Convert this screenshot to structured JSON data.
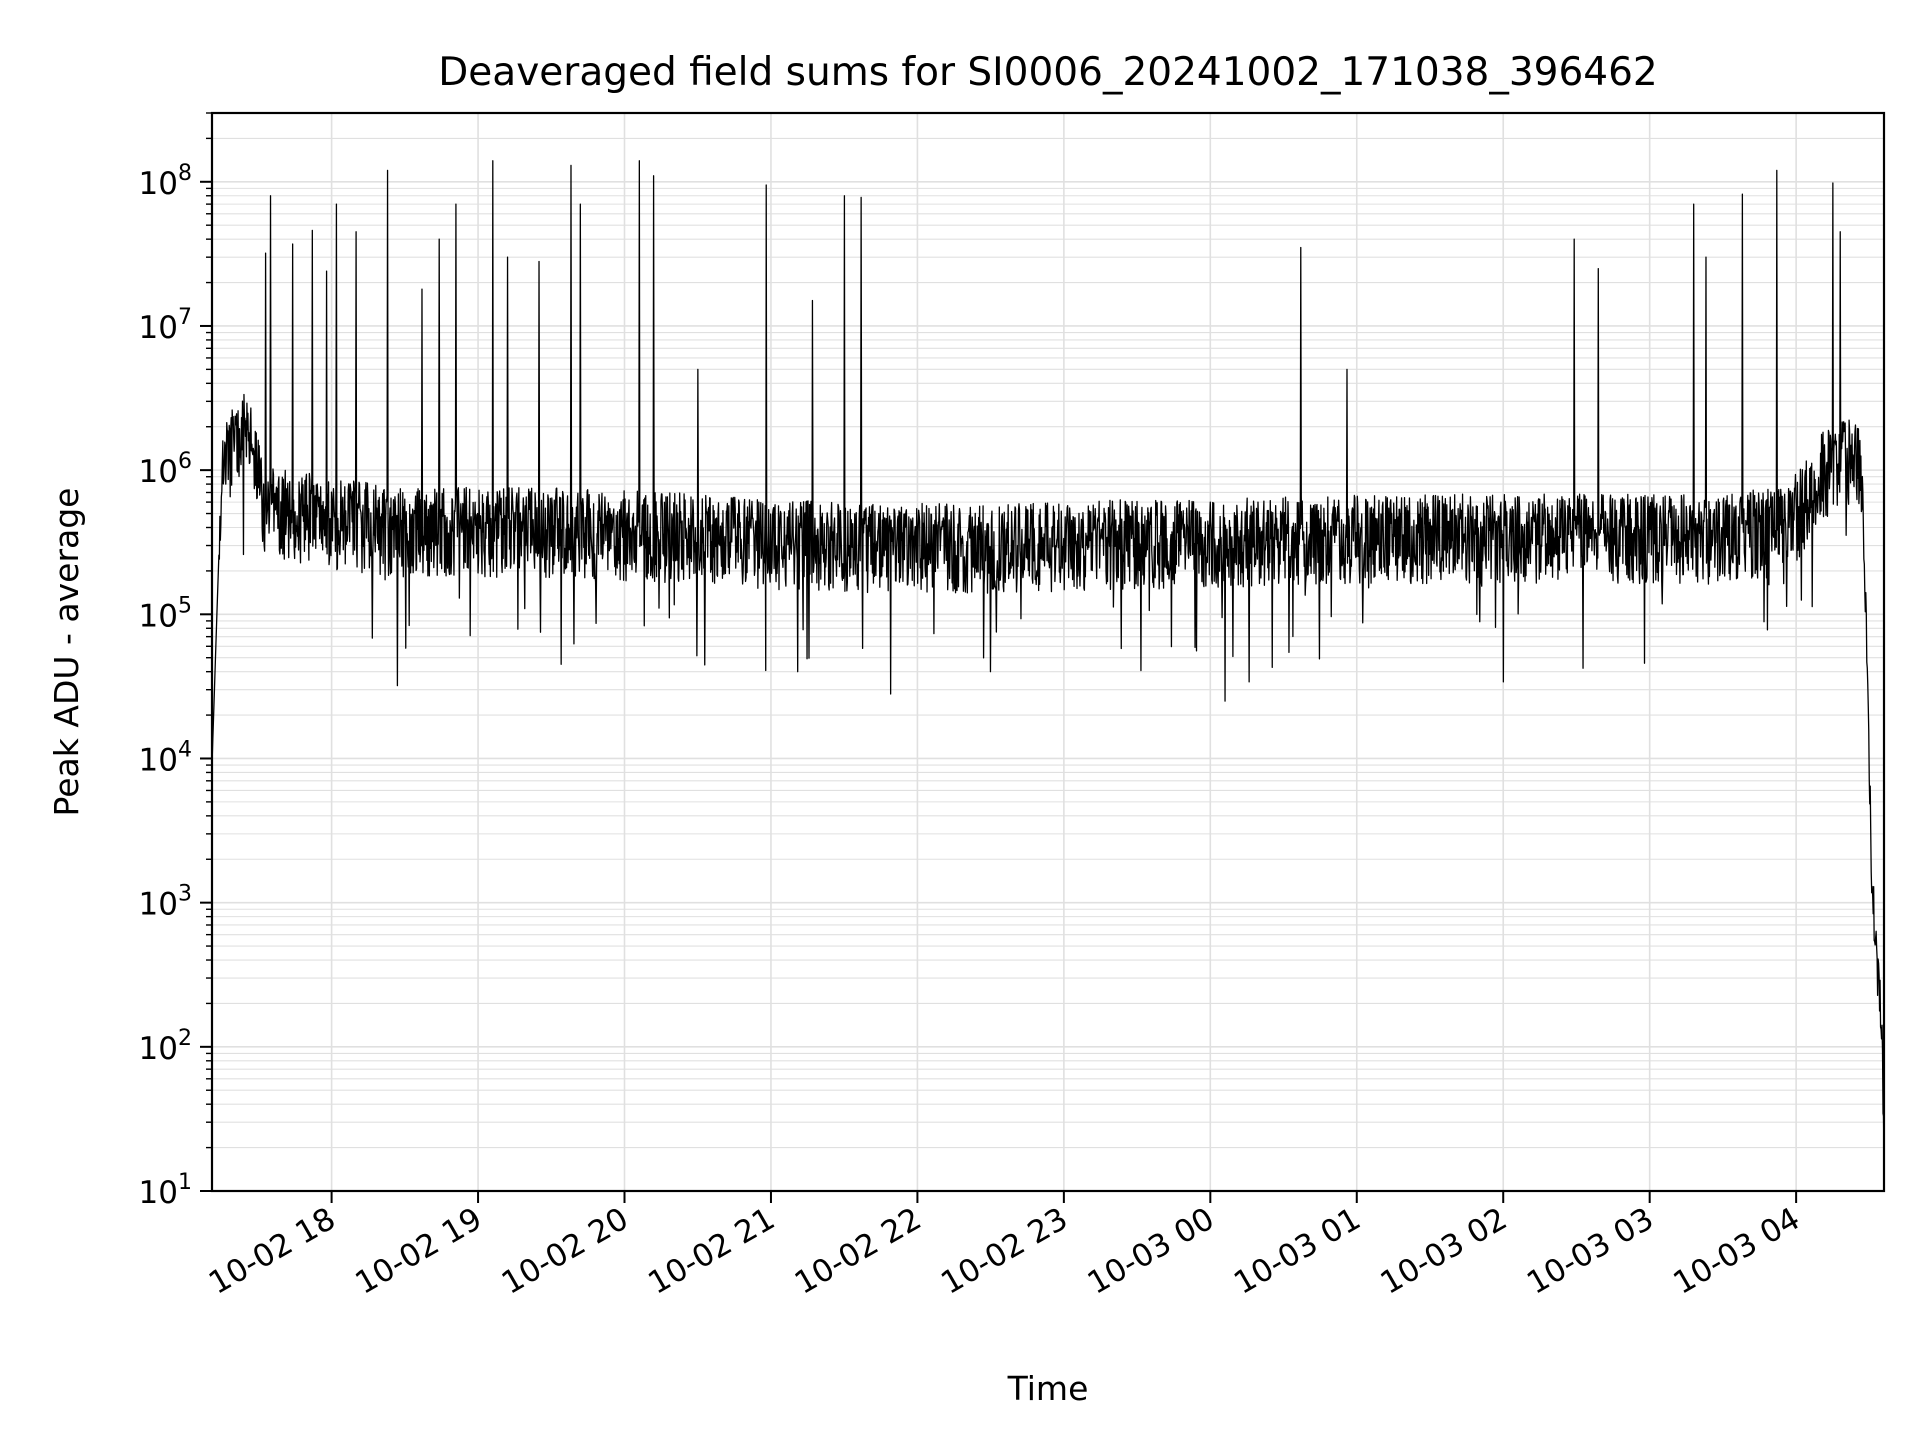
{
  "chart_data": {
    "type": "line",
    "title": "Deaveraged field sums for SI0006_20241002_171038_396462",
    "xlabel": "Time",
    "ylabel": "Peak ADU - average",
    "yscale": "log",
    "ylim": [
      10,
      300000000
    ],
    "xlim": [
      "2024-10-02 17:11",
      "2024-10-03 04:36"
    ],
    "grid": true,
    "line_color": "#000000",
    "grid_color": "#e0e0e0",
    "x_ticks": [
      "2024-10-02 18:00",
      "2024-10-02 19:00",
      "2024-10-02 20:00",
      "2024-10-02 21:00",
      "2024-10-02 22:00",
      "2024-10-02 23:00",
      "2024-10-03 00:00",
      "2024-10-03 01:00",
      "2024-10-03 02:00",
      "2024-10-03 03:00",
      "2024-10-03 04:00"
    ],
    "x_tick_labels": [
      "10-02 18",
      "10-02 19",
      "10-02 20",
      "10-02 21",
      "10-02 22",
      "10-02 23",
      "10-03 00",
      "10-03 01",
      "10-03 02",
      "10-03 03",
      "10-03 04"
    ],
    "y_ticks": [
      {
        "value": 10,
        "base": "10",
        "exp": "1"
      },
      {
        "value": 100,
        "base": "10",
        "exp": "2"
      },
      {
        "value": 1000,
        "base": "10",
        "exp": "3"
      },
      {
        "value": 10000,
        "base": "10",
        "exp": "4"
      },
      {
        "value": 100000,
        "base": "10",
        "exp": "5"
      },
      {
        "value": 1000000,
        "base": "10",
        "exp": "6"
      },
      {
        "value": 10000000,
        "base": "10",
        "exp": "7"
      },
      {
        "value": 100000000,
        "base": "10",
        "exp": "8"
      }
    ],
    "series": [
      {
        "x": [
          "2024-10-02 17:11",
          "2024-10-02 17:13",
          "2024-10-02 17:15",
          "2024-10-02 17:19",
          "2024-10-02 17:25",
          "2024-10-02 17:32",
          "2024-10-02 17:38",
          "2024-10-02 17:44",
          "2024-10-02 17:52",
          "2024-10-02 18:00",
          "2024-10-02 18:10",
          "2024-10-02 18:20",
          "2024-10-02 18:30",
          "2024-10-02 18:45",
          "2024-10-02 19:00",
          "2024-10-02 19:30",
          "2024-10-02 20:00",
          "2024-10-02 20:30",
          "2024-10-02 21:00",
          "2024-10-02 21:30",
          "2024-10-02 22:00",
          "2024-10-02 22:30",
          "2024-10-02 23:00",
          "2024-10-02 23:30",
          "2024-10-03 00:00",
          "2024-10-03 00:30",
          "2024-10-03 01:00",
          "2024-10-03 01:30",
          "2024-10-03 02:00",
          "2024-10-03 02:30",
          "2024-10-03 03:00",
          "2024-10-03 03:30",
          "2024-10-03 03:50",
          "2024-10-03 04:00",
          "2024-10-03 04:10",
          "2024-10-03 04:20",
          "2024-10-03 04:27",
          "2024-10-03 04:29",
          "2024-10-03 04:31",
          "2024-10-03 04:33",
          "2024-10-03 04:35",
          "2024-10-03 04:36"
        ],
        "y": [
          9000,
          100000,
          1000000,
          1500000,
          2000000,
          600000,
          550000,
          500000,
          500000,
          450000,
          450000,
          420000,
          400000,
          400000,
          400000,
          400000,
          380000,
          360000,
          330000,
          320000,
          310000,
          310000,
          320000,
          330000,
          330000,
          350000,
          360000,
          360000,
          360000,
          360000,
          360000,
          360000,
          400000,
          500000,
          1000000,
          1200000,
          1100000,
          50000,
          1500,
          400,
          150,
          20
        ],
        "envelope": {
          "baseline_upper_factor": 1.9,
          "baseline_lower_factor": 0.45,
          "dip_min": 25000
        }
      }
    ],
    "spikes": [
      {
        "x": "2024-10-02 17:33",
        "y": 32000000
      },
      {
        "x": "2024-10-02 17:35",
        "y": 80000000
      },
      {
        "x": "2024-10-02 17:44",
        "y": 37000000
      },
      {
        "x": "2024-10-02 17:52",
        "y": 46000000
      },
      {
        "x": "2024-10-02 17:58",
        "y": 24000000
      },
      {
        "x": "2024-10-02 18:02",
        "y": 70000000
      },
      {
        "x": "2024-10-02 18:10",
        "y": 45000000
      },
      {
        "x": "2024-10-02 18:23",
        "y": 120000000
      },
      {
        "x": "2024-10-02 18:37",
        "y": 18000000
      },
      {
        "x": "2024-10-02 18:44",
        "y": 40000000
      },
      {
        "x": "2024-10-02 18:51",
        "y": 70000000
      },
      {
        "x": "2024-10-02 19:06",
        "y": 140000000
      },
      {
        "x": "2024-10-02 19:12",
        "y": 30000000
      },
      {
        "x": "2024-10-02 19:25",
        "y": 28000000
      },
      {
        "x": "2024-10-02 19:38",
        "y": 130000000
      },
      {
        "x": "2024-10-02 19:42",
        "y": 70000000
      },
      {
        "x": "2024-10-02 20:06",
        "y": 140000000
      },
      {
        "x": "2024-10-02 20:12",
        "y": 110000000
      },
      {
        "x": "2024-10-02 20:30",
        "y": 5000000
      },
      {
        "x": "2024-10-02 20:58",
        "y": 95000000
      },
      {
        "x": "2024-10-02 21:17",
        "y": 15000000
      },
      {
        "x": "2024-10-02 21:30",
        "y": 80000000
      },
      {
        "x": "2024-10-02 21:37",
        "y": 78000000
      },
      {
        "x": "2024-10-03 00:37",
        "y": 35000000
      },
      {
        "x": "2024-10-03 00:56",
        "y": 5000000
      },
      {
        "x": "2024-10-03 02:29",
        "y": 40000000
      },
      {
        "x": "2024-10-03 02:39",
        "y": 25000000
      },
      {
        "x": "2024-10-03 03:18",
        "y": 70000000
      },
      {
        "x": "2024-10-03 03:23",
        "y": 30000000
      },
      {
        "x": "2024-10-03 03:38",
        "y": 82000000
      },
      {
        "x": "2024-10-03 03:52",
        "y": 120000000
      },
      {
        "x": "2024-10-03 04:15",
        "y": 98000000
      },
      {
        "x": "2024-10-03 04:18",
        "y": 45000000
      }
    ],
    "dips": [
      {
        "x": "2024-10-02 18:27",
        "y": 32000
      },
      {
        "x": "2024-10-02 19:34",
        "y": 45000
      },
      {
        "x": "2024-10-02 21:11",
        "y": 40000
      },
      {
        "x": "2024-10-02 21:49",
        "y": 28000
      },
      {
        "x": "2024-10-02 22:30",
        "y": 40000
      },
      {
        "x": "2024-10-03 00:06",
        "y": 25000
      },
      {
        "x": "2024-10-03 00:16",
        "y": 34000
      },
      {
        "x": "2024-10-03 02:00",
        "y": 34000
      }
    ]
  }
}
